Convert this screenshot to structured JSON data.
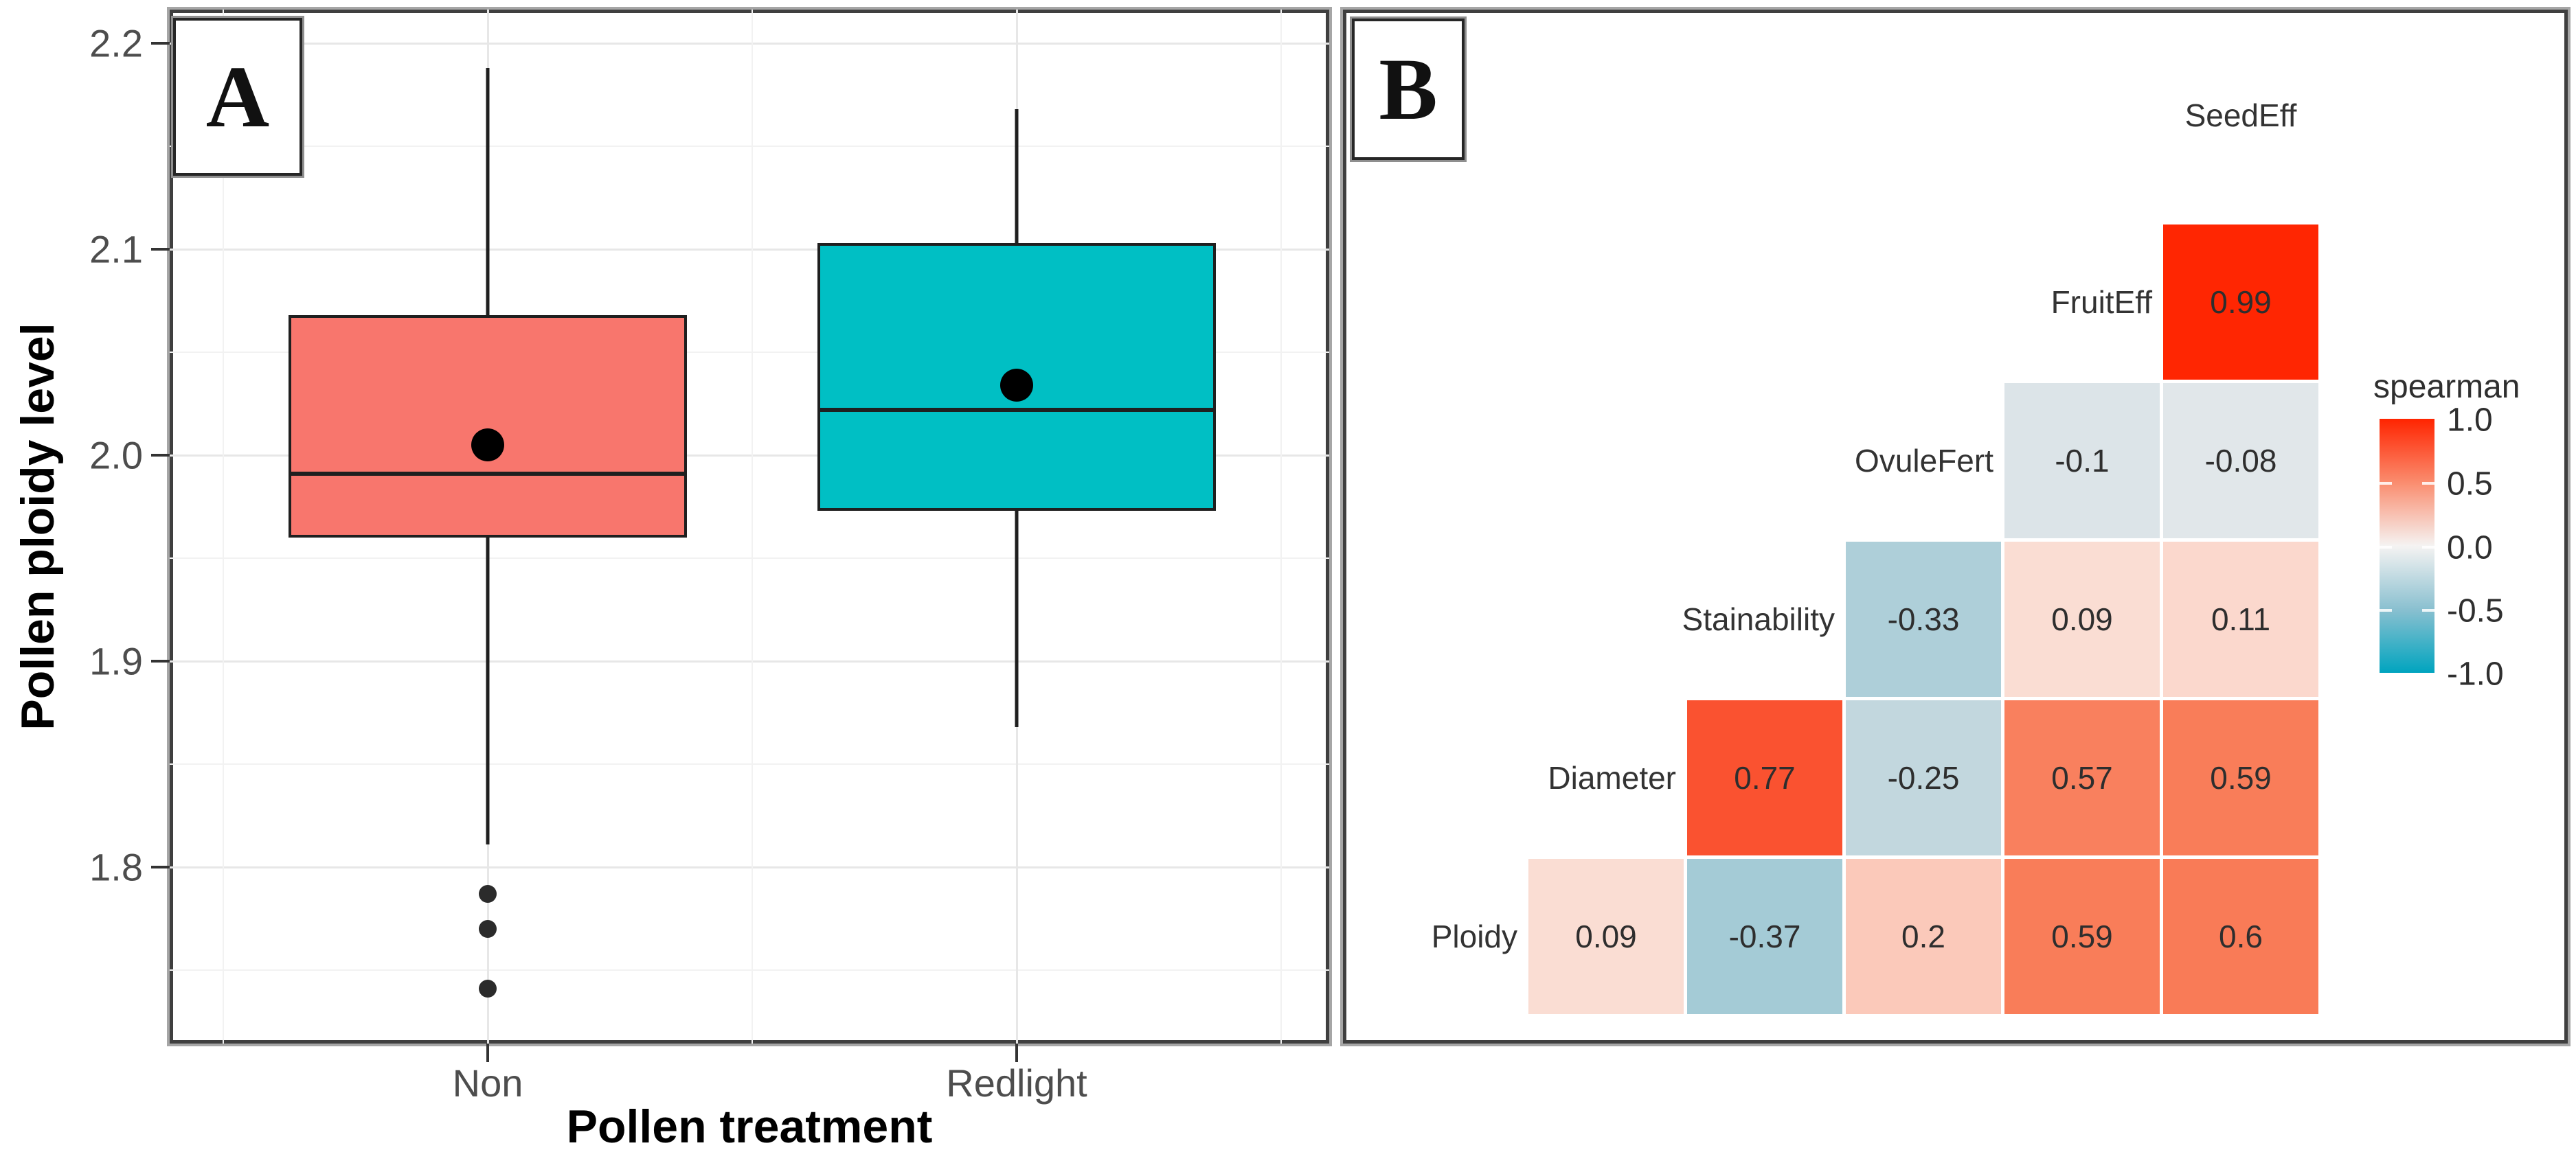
{
  "figure": {
    "panel_a": {
      "label": "A",
      "y_axis_title": "Pollen ploidy level",
      "x_axis_title": "Pollen treatment"
    },
    "panel_b": {
      "label": "B"
    }
  },
  "chart_data": [
    {
      "type": "boxplot",
      "xlabel": "Pollen treatment",
      "ylabel": "Pollen ploidy level",
      "ylim": [
        1.714,
        2.216
      ],
      "ytick_labels": [
        "2.2",
        "2.1",
        "2.0",
        "1.9",
        "1.8"
      ],
      "ytick_minor": [
        2.15,
        2.05,
        1.95,
        1.85,
        1.75
      ],
      "grid": true,
      "categories": [
        "Non",
        "Redlight"
      ],
      "series": [
        {
          "name": "Non",
          "color": "#F8766D",
          "whisker_low": 1.811,
          "q1": 1.96,
          "median": 1.991,
          "mean": 2.005,
          "q3": 2.068,
          "whisker_high": 2.188,
          "outliers": [
            1.787,
            1.77,
            1.741
          ]
        },
        {
          "name": "Redlight",
          "color": "#00BFC4",
          "whisker_low": 1.868,
          "q1": 1.973,
          "median": 2.022,
          "mean": 2.034,
          "q3": 2.103,
          "whisker_high": 2.168,
          "outliers": []
        }
      ]
    },
    {
      "type": "heatmap",
      "subtype": "correlation-lower-triangle",
      "top_label": "SeedEff",
      "row_labels": [
        "FruitEff",
        "OvuleFert",
        "Stainability",
        "Diameter",
        "Ploidy"
      ],
      "col_labels": [
        "Diameter",
        "Stainability",
        "OvuleFert",
        "FruitEff",
        "SeedEff"
      ],
      "values": [
        [
          null,
          null,
          null,
          null,
          0.99
        ],
        [
          null,
          null,
          null,
          -0.1,
          -0.08
        ],
        [
          null,
          null,
          -0.33,
          0.09,
          0.11
        ],
        [
          null,
          0.77,
          -0.25,
          0.57,
          0.59
        ],
        [
          0.09,
          -0.37,
          0.2,
          0.59,
          0.6
        ]
      ],
      "legend": {
        "title": "spearman",
        "ticks": [
          "1.0",
          "0.5",
          "0.0",
          "-0.5",
          "-1.0"
        ],
        "range": [
          -1,
          1
        ],
        "legend_position": "right",
        "gradient_stops": [
          [
            1.0,
            "#FF2400"
          ],
          [
            0.77,
            "#FA5230"
          ],
          [
            0.6,
            "#F97B57"
          ],
          [
            0.5,
            "#FA8C6E"
          ],
          [
            0.2,
            "#FBC9BA"
          ],
          [
            0.1,
            "#FBDACF"
          ],
          [
            0.0,
            "#F5F3F2"
          ],
          [
            -0.1,
            "#DCE4E8"
          ],
          [
            -0.25,
            "#C2D7DE"
          ],
          [
            -0.37,
            "#A4CBD6"
          ],
          [
            -0.5,
            "#8AC0D0"
          ],
          [
            -1.0,
            "#00A4BF"
          ]
        ]
      }
    }
  ]
}
